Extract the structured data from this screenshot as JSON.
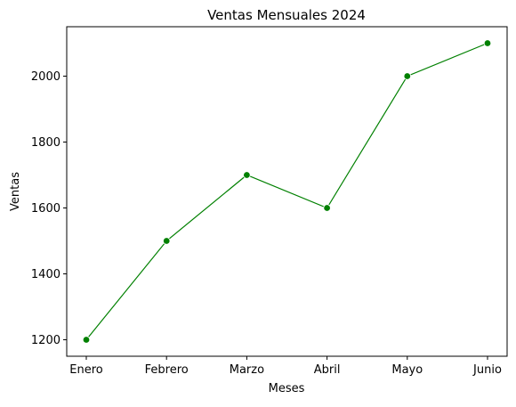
{
  "chart_data": {
    "type": "line",
    "title": "Ventas Mensuales 2024",
    "xlabel": "Meses",
    "ylabel": "Ventas",
    "categories": [
      "Enero",
      "Febrero",
      "Marzo",
      "Abril",
      "Mayo",
      "Junio"
    ],
    "series": [
      {
        "values": [
          1200,
          1500,
          1700,
          1600,
          2000,
          2100
        ],
        "color": "#008000",
        "marker": "circle"
      }
    ],
    "ylim": [
      1150,
      2150
    ],
    "yticks": [
      1200,
      1400,
      1600,
      1800,
      2000
    ],
    "grid": false,
    "legend": "none"
  }
}
